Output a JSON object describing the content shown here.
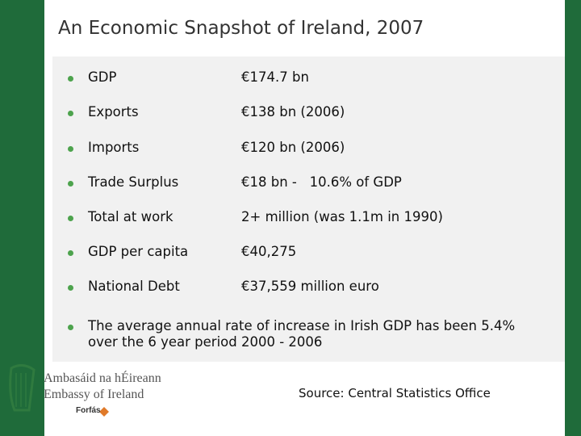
{
  "title": "An Economic Snapshot of Ireland, 2007",
  "items": [
    {
      "label": "GDP",
      "value": "€174.7 bn"
    },
    {
      "label": "Exports",
      "value": "€138 bn (2006)"
    },
    {
      "label": "Imports",
      "value": "€120 bn (2006)"
    },
    {
      "label": "Trade Surplus",
      "value": "€18 bn -   10.6% of GDP"
    },
    {
      "label": "Total at work",
      "value": "2+ million (was 1.1m in 1990)"
    },
    {
      "label": "GDP per capita",
      "value": "€40,275"
    },
    {
      "label": "National Debt",
      "value": "€37,559 million euro"
    }
  ],
  "note": "The average annual rate of increase in Irish GDP has been 5.4% over the 6 year period 2000 - 2006",
  "source": "Source: Central Statistics Office",
  "logo": {
    "line1": "Ambasáid na hÉireann",
    "line2": "Embassy of Ireland",
    "line3": "Forfás"
  }
}
